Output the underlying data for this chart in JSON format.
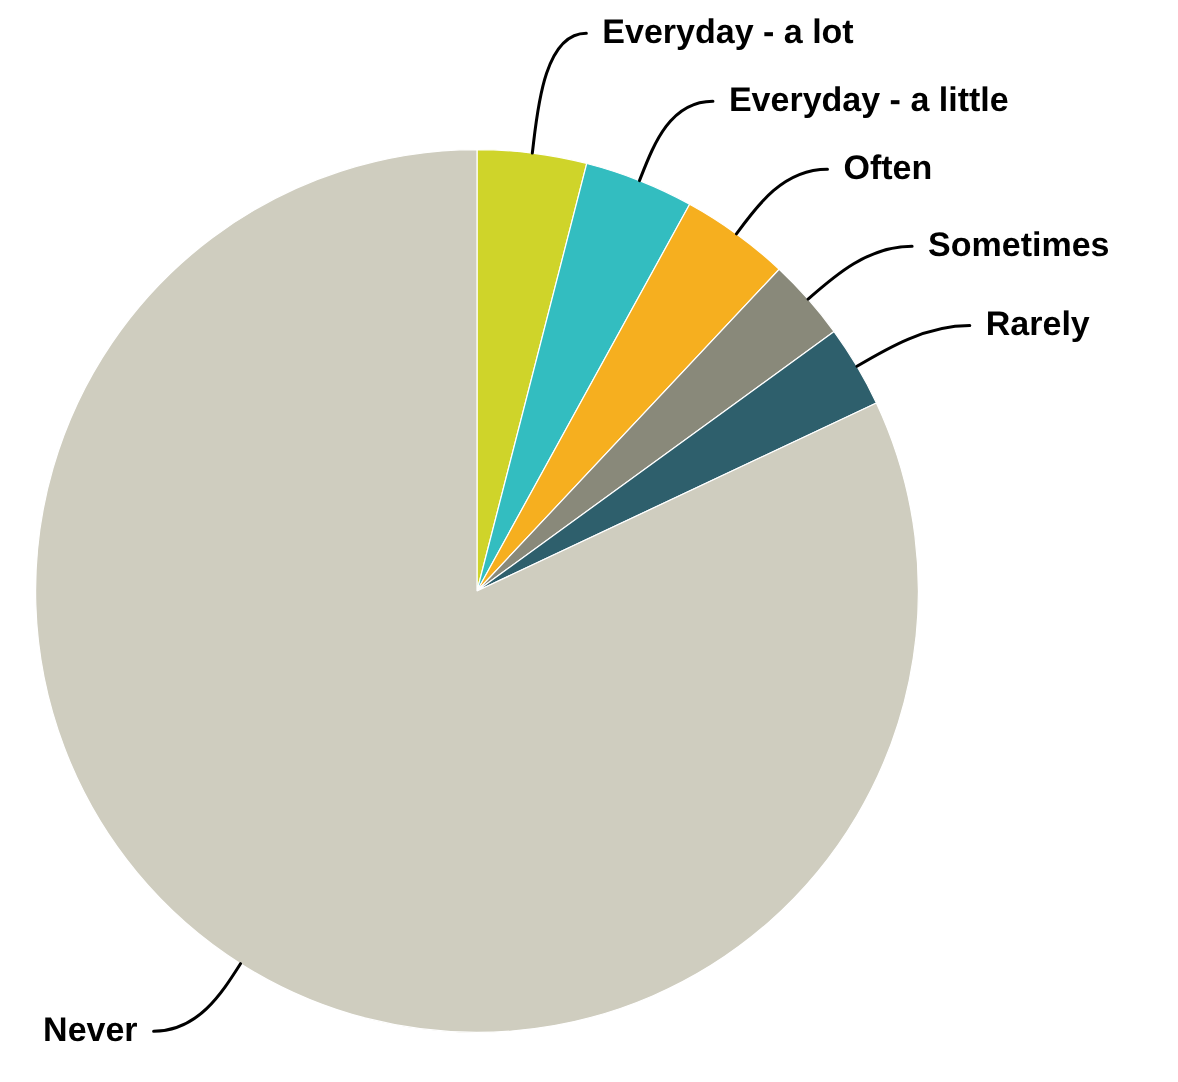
{
  "chart_data": {
    "type": "pie",
    "categories": [
      "Everyday - a lot",
      "Everyday - a little",
      "Often",
      "Sometimes",
      "Rarely",
      "Never"
    ],
    "values": [
      4,
      4,
      4,
      3,
      3,
      82
    ],
    "colors": [
      "#cfd42a",
      "#33bdc0",
      "#f6af1f",
      "#89897a",
      "#2e5f6c",
      "#cfcdbf"
    ]
  }
}
